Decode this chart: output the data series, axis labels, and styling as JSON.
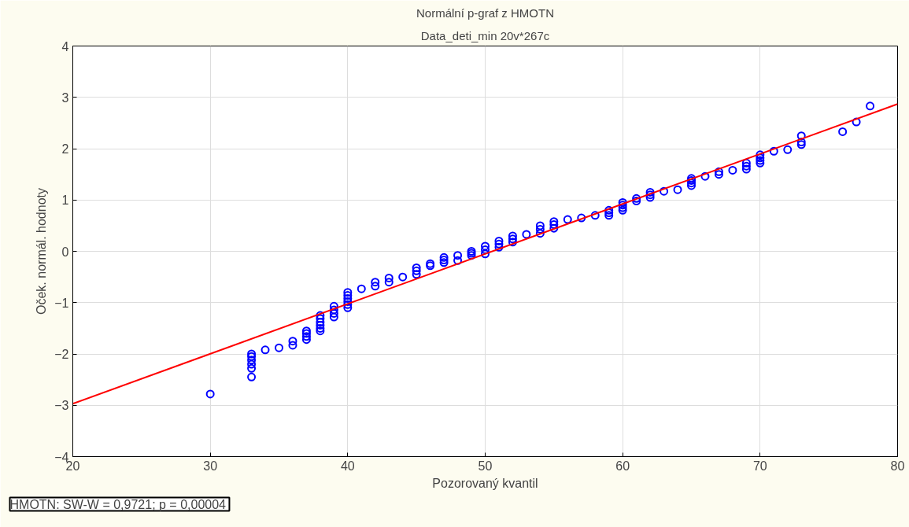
{
  "chart_data": {
    "type": "scatter",
    "title": "Normální p-graf z HMOTN",
    "subtitle": "Data_deti_min 20v*267c",
    "xlabel": "Pozorovaný kvantil",
    "ylabel": "Oček. normál. hodnoty",
    "annotations": [
      "HMOTN:  SW-W = 0,9721; p = 0,00004"
    ],
    "xlim": [
      20,
      80
    ],
    "xticks": [
      20,
      30,
      40,
      50,
      60,
      70,
      80
    ],
    "ylim": [
      -4,
      4
    ],
    "yticks": [
      -4,
      -3,
      -2,
      -1,
      0,
      1,
      2,
      3,
      4
    ],
    "grid": true,
    "series": [
      {
        "marker": "circle",
        "color": "#0000ff",
        "x": [
          30,
          33,
          33,
          33,
          33,
          33,
          33,
          34,
          35,
          36,
          36,
          37,
          37,
          37,
          37,
          38,
          38,
          38,
          38,
          38,
          38,
          39,
          39,
          39,
          39,
          40,
          40,
          40,
          40,
          40,
          40,
          41,
          42,
          42,
          43,
          43,
          44,
          45,
          45,
          45,
          46,
          46,
          47,
          47,
          47,
          48,
          48,
          49,
          49,
          49,
          50,
          50,
          50,
          51,
          51,
          51,
          52,
          52,
          52,
          53,
          54,
          54,
          54,
          55,
          55,
          55,
          56,
          57,
          58,
          59,
          59,
          59,
          60,
          60,
          60,
          60,
          61,
          61,
          62,
          62,
          62,
          63,
          64,
          65,
          65,
          65,
          65,
          66,
          67,
          67,
          68,
          69,
          69,
          69,
          70,
          70,
          70,
          70,
          71,
          72,
          73,
          73,
          73,
          76,
          77,
          78
        ],
        "values": [
          -2.78,
          -2.45,
          -2.28,
          -2.2,
          -2.12,
          -2.05,
          -2.0,
          -1.92,
          -1.88,
          -1.83,
          -1.75,
          -1.72,
          -1.66,
          -1.6,
          -1.55,
          -1.55,
          -1.5,
          -1.44,
          -1.38,
          -1.31,
          -1.25,
          -1.28,
          -1.21,
          -1.14,
          -1.07,
          -1.1,
          -1.04,
          -0.98,
          -0.92,
          -0.86,
          -0.8,
          -0.73,
          -0.68,
          -0.6,
          -0.6,
          -0.52,
          -0.5,
          -0.45,
          -0.38,
          -0.32,
          -0.28,
          -0.24,
          -0.22,
          -0.17,
          -0.12,
          -0.18,
          -0.08,
          -0.08,
          -0.04,
          0.0,
          -0.05,
          0.03,
          0.1,
          0.08,
          0.14,
          0.2,
          0.18,
          0.24,
          0.3,
          0.33,
          0.35,
          0.43,
          0.5,
          0.45,
          0.52,
          0.58,
          0.62,
          0.65,
          0.7,
          0.7,
          0.75,
          0.8,
          0.8,
          0.85,
          0.9,
          0.95,
          0.98,
          1.03,
          1.05,
          1.1,
          1.15,
          1.17,
          1.2,
          1.28,
          1.33,
          1.38,
          1.42,
          1.46,
          1.5,
          1.55,
          1.58,
          1.6,
          1.66,
          1.72,
          1.72,
          1.77,
          1.82,
          1.88,
          1.95,
          1.98,
          2.08,
          2.13,
          2.25,
          2.33,
          2.52,
          2.83
        ]
      },
      {
        "type": "line",
        "color": "#ff0000",
        "x": [
          20,
          80
        ],
        "values": [
          -2.97,
          2.87
        ]
      }
    ]
  }
}
